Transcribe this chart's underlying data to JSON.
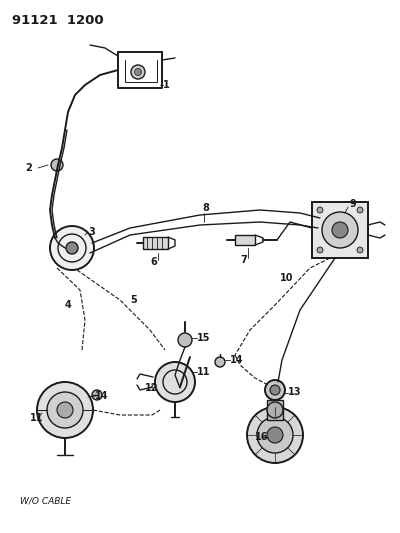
{
  "bg_color": "#ffffff",
  "line_color": "#1a1a1a",
  "header": "91121  1200",
  "footer": "W/O CABLE",
  "fig_w": 4.0,
  "fig_h": 5.33,
  "dpi": 100
}
